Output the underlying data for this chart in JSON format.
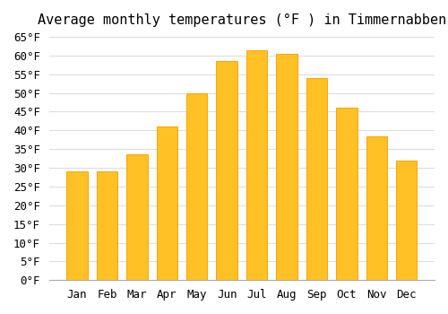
{
  "title": "Average monthly temperatures (°F ) in Timmernabben",
  "months": [
    "Jan",
    "Feb",
    "Mar",
    "Apr",
    "May",
    "Jun",
    "Jul",
    "Aug",
    "Sep",
    "Oct",
    "Nov",
    "Dec"
  ],
  "values": [
    29,
    29,
    33.5,
    41,
    50,
    58.5,
    61.5,
    60.5,
    54,
    46,
    38.5,
    32
  ],
  "bar_color": "#FFC125",
  "bar_edge_color": "#FFA500",
  "ylim": [
    0,
    65
  ],
  "yticks": [
    0,
    5,
    10,
    15,
    20,
    25,
    30,
    35,
    40,
    45,
    50,
    55,
    60,
    65
  ],
  "ylabel_suffix": "°F",
  "background_color": "#FFFFFF",
  "grid_color": "#DDDDDD",
  "title_fontsize": 11,
  "tick_fontsize": 9,
  "font_family": "monospace"
}
